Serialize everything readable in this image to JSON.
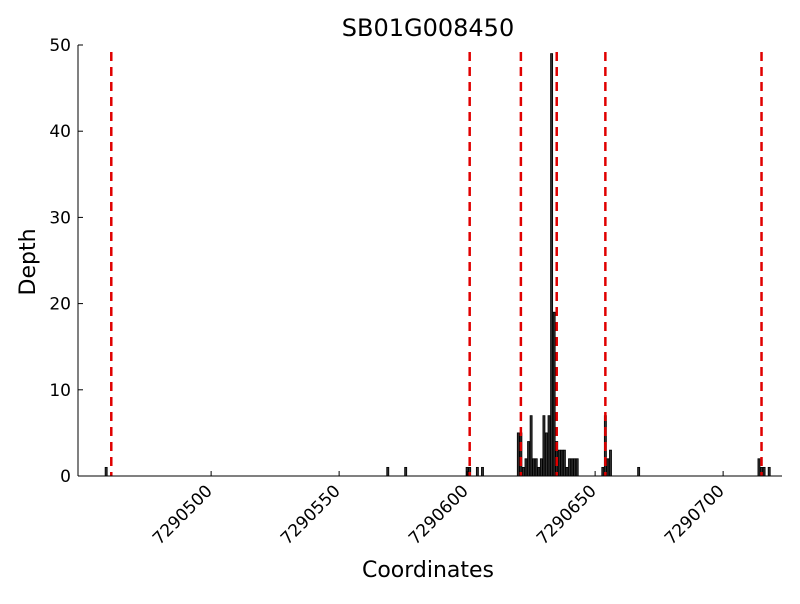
{
  "chart_data": {
    "type": "bar",
    "title": "SB01G008450",
    "xlabel": "Coordinates",
    "ylabel": "Depth",
    "xlim": [
      7290448,
      7290723
    ],
    "ylim": [
      0,
      50
    ],
    "xticks": [
      7290500,
      7290550,
      7290600,
      7290650,
      7290700
    ],
    "xtick_labels": [
      "7290500",
      "7290550",
      "7290600",
      "7290650",
      "7290700"
    ],
    "yticks": [
      0,
      10,
      20,
      30,
      40,
      50
    ],
    "ytick_labels": [
      "0",
      "10",
      "20",
      "30",
      "40",
      "50"
    ],
    "grid": false,
    "bar_color": "#303030",
    "bar_edge_color": "#000000",
    "vline_color": "#e00000",
    "vlines": [
      7290461,
      7290601,
      7290621,
      7290635,
      7290654,
      7290715
    ],
    "x": [
      7290459,
      7290569,
      7290576,
      7290600,
      7290601,
      7290604,
      7290606,
      7290620,
      7290621,
      7290622,
      7290623,
      7290624,
      7290625,
      7290626,
      7290627,
      7290628,
      7290629,
      7290630,
      7290631,
      7290632,
      7290633,
      7290634,
      7290635,
      7290636,
      7290637,
      7290638,
      7290639,
      7290640,
      7290641,
      7290642,
      7290643,
      7290653,
      7290654,
      7290655,
      7290656,
      7290667,
      7290714,
      7290715,
      7290716,
      7290718
    ],
    "values": [
      1,
      1,
      1,
      1,
      1,
      1,
      1,
      5,
      5,
      1,
      2,
      4,
      7,
      2,
      2,
      1,
      2,
      7,
      5,
      7,
      49,
      19,
      4,
      3,
      3,
      3,
      1,
      2,
      2,
      2,
      2,
      1,
      7,
      2,
      3,
      1,
      2,
      1,
      1,
      1
    ]
  }
}
